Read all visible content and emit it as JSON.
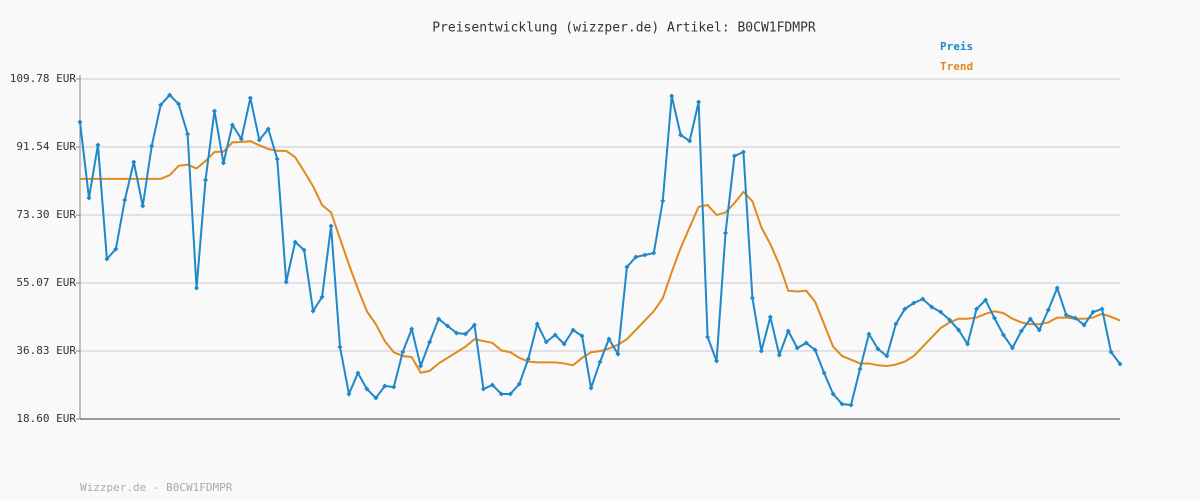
{
  "chart_data": {
    "type": "line",
    "title": "Preisentwicklung (wizzper.de) Artikel: B0CW1FDMPR",
    "footer": "Wizzper.de - B0CW1FDMPR",
    "ylim": [
      18.6,
      109.78
    ],
    "yticks": [
      {
        "value": 18.6,
        "label": "18.60 EUR"
      },
      {
        "value": 36.83,
        "label": "36.83 EUR"
      },
      {
        "value": 55.07,
        "label": "55.07 EUR"
      },
      {
        "value": 73.3,
        "label": "73.30 EUR"
      },
      {
        "value": 91.54,
        "label": "91.54 EUR"
      },
      {
        "value": 109.78,
        "label": "109.78 EUR"
      }
    ],
    "grid": true,
    "legend": "top-right",
    "series": [
      {
        "name": "Preis",
        "color": "#1e88c8",
        "markers": true,
        "values": [
          98.25,
          77.87,
          92.08,
          61.51,
          64.19,
          77.33,
          87.52,
          75.72,
          91.81,
          102.81,
          105.49,
          103.08,
          95.03,
          53.73,
          82.69,
          101.2,
          87.25,
          97.44,
          93.69,
          104.68,
          93.42,
          96.37,
          88.33,
          55.34,
          66.07,
          63.92,
          47.56,
          51.32,
          70.36,
          37.91,
          25.3,
          30.93,
          26.64,
          24.23,
          27.45,
          27.18,
          36.57,
          42.73,
          32.81,
          39.25,
          45.42,
          43.54,
          41.66,
          41.39,
          43.81,
          26.64,
          27.72,
          25.3,
          25.3,
          27.99,
          34.69,
          44.08,
          39.25,
          41.13,
          38.71,
          42.47,
          40.86,
          26.91,
          33.88,
          40.05,
          36.03,
          59.36,
          62.04,
          62.58,
          63.12,
          77.06,
          105.22,
          94.76,
          93.15,
          103.61,
          40.59,
          34.15,
          68.48,
          89.13,
          90.2,
          51.05,
          36.84,
          45.95,
          35.76,
          42.2,
          37.64,
          38.98,
          37.1,
          30.93,
          25.3,
          22.62,
          22.35,
          32.01,
          41.39,
          37.37,
          35.49,
          44.08,
          48.1,
          49.71,
          50.78,
          48.63,
          47.29,
          45.15,
          42.47,
          38.71,
          48.1,
          50.51,
          45.68,
          41.13,
          37.64,
          42.2,
          45.42,
          42.47,
          47.83,
          53.73,
          46.49,
          45.68,
          43.81,
          47.29,
          48.1,
          36.57,
          33.35
        ]
      },
      {
        "name": "Trend",
        "color": "#e08a1e",
        "markers": false,
        "values": [
          83.0,
          83.0,
          83.0,
          83.0,
          83.0,
          83.0,
          83.0,
          83.0,
          83.0,
          83.0,
          84.0,
          86.5,
          86.8,
          85.8,
          87.8,
          90.2,
          90.3,
          92.8,
          92.9,
          93.1,
          92.0,
          91.0,
          90.5,
          90.5,
          88.8,
          85.0,
          81.0,
          76.0,
          74.0,
          67.0,
          60.0,
          53.5,
          47.5,
          44.0,
          39.5,
          36.5,
          35.5,
          35.2,
          31.0,
          31.5,
          33.5,
          35.0,
          36.5,
          38.0,
          40.0,
          39.5,
          39.0,
          37.0,
          36.5,
          35.0,
          34.0,
          33.8,
          33.8,
          33.8,
          33.5,
          33.0,
          35.0,
          36.5,
          36.8,
          37.5,
          38.5,
          40.0,
          42.5,
          45.0,
          47.5,
          51.0,
          58.0,
          64.5,
          70.0,
          75.5,
          76.0,
          73.3,
          74.0,
          76.5,
          79.5,
          77.0,
          70.0,
          65.5,
          60.0,
          53.0,
          52.8,
          53.0,
          50.0,
          44.0,
          38.0,
          35.5,
          34.5,
          33.5,
          33.5,
          33.0,
          32.8,
          33.2,
          34.0,
          35.5,
          38.0,
          40.5,
          43.0,
          44.5,
          45.5,
          45.5,
          45.8,
          46.8,
          47.5,
          47.0,
          45.5,
          44.5,
          44.0,
          44.0,
          44.5,
          45.8,
          45.8,
          45.5,
          45.5,
          45.8,
          46.8,
          46.0,
          45.0
        ]
      }
    ]
  }
}
